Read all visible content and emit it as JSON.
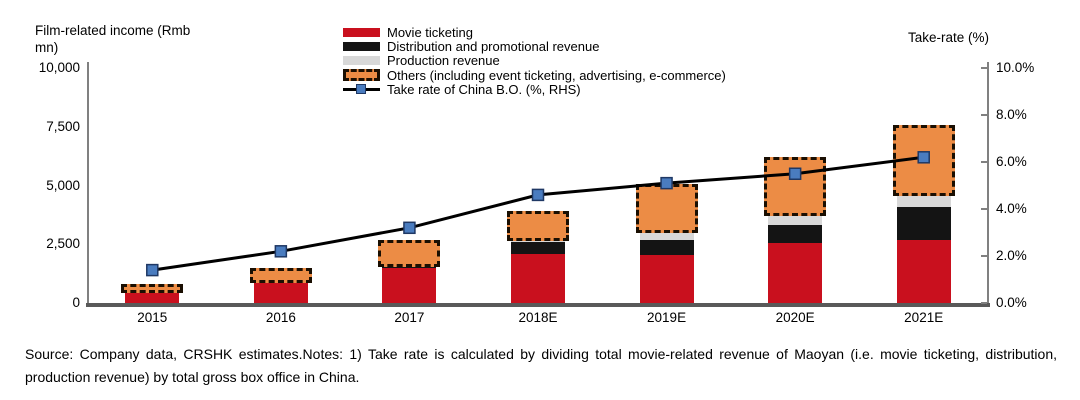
{
  "titles": {
    "left_axis": "Film-related income (Rmb mn)",
    "right_axis": "Take-rate (%)"
  },
  "legend": {
    "items": [
      {
        "key": "ticketing",
        "label": "Movie ticketing",
        "color": "#C9101E"
      },
      {
        "key": "distribution",
        "label": "Distribution and promotional revenue",
        "color": "#141414"
      },
      {
        "key": "production",
        "label": "Production revenue",
        "color": "#D8D8D8"
      },
      {
        "key": "others",
        "label": "Others (including event ticketing, advertising, e-commerce)",
        "color": "#EC8C45"
      },
      {
        "key": "take-rate",
        "label": "Take rate of China B.O. (%, RHS)",
        "color": "#000000"
      }
    ]
  },
  "chart_data": {
    "type": "bar",
    "subtype": "stacked-bars-with-right-axis-line",
    "title": "",
    "categories": [
      "2015",
      "2016",
      "2017",
      "2018E",
      "2019E",
      "2020E",
      "2021E"
    ],
    "series": [
      {
        "key": "ticketing",
        "name": "Movie ticketing",
        "color": "#C9101E",
        "values": [
          550,
          900,
          1500,
          2100,
          2050,
          2550,
          2700
        ]
      },
      {
        "key": "distribution",
        "name": "Distribution and promotional revenue",
        "color": "#141414",
        "values": [
          0,
          60,
          150,
          500,
          650,
          780,
          1400
        ]
      },
      {
        "key": "production",
        "name": "Production revenue",
        "color": "#D8D8D8",
        "values": [
          0,
          0,
          0,
          150,
          420,
          500,
          600
        ]
      },
      {
        "key": "others",
        "name": "Others (including event ticketing, advertising, e-commerce)",
        "color": "#EC8C45",
        "style": "dashed-outline",
        "values": [
          120,
          400,
          900,
          1050,
          1800,
          2250,
          2750
        ]
      }
    ],
    "line_series": {
      "key": "take-rate",
      "name": "Take rate of China B.O. (%, RHS)",
      "axis": "right",
      "color": "#000000",
      "marker_color": "#4A7CBF",
      "marker_border": "#1F3864",
      "values": [
        1.4,
        2.2,
        3.2,
        4.6,
        5.1,
        5.5,
        6.2
      ]
    },
    "left_axis": {
      "title": "Film-related income (Rmb mn)",
      "range": [
        0,
        10000
      ],
      "ticks": [
        0,
        2500,
        5000,
        7500,
        10000
      ],
      "tick_labels": [
        "0",
        "2,500",
        "5,000",
        "7,500",
        "10,000"
      ]
    },
    "right_axis": {
      "title": "Take-rate (%)",
      "range": [
        0,
        10
      ],
      "ticks": [
        0,
        2,
        4,
        6,
        8,
        10
      ],
      "tick_labels": [
        "0.0%",
        "2.0%",
        "4.0%",
        "6.0%",
        "8.0%",
        "10.0%"
      ]
    },
    "grid": false,
    "legend_position": "top-center"
  },
  "footer": {
    "source_note": "Source: Company data, CRSHK estimates.Notes: 1) Take rate is calculated by dividing total movie-related revenue of Maoyan (i.e. movie ticketing, distribution, production revenue) by total gross box office in China."
  }
}
